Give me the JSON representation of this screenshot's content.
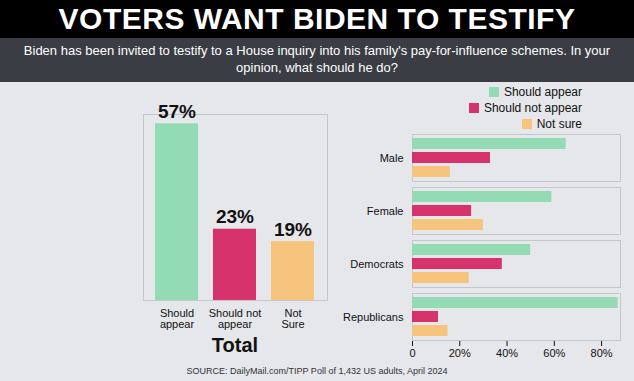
{
  "title": "VOTERS WANT BIDEN TO TESTIFY",
  "subtitle": "Biden has been invited to testify to a House inquiry into his family's pay-for-influence schemes. In your opinion, what should he do?",
  "source": "SOURCE: DailyMail.com/TIPP Poll of 1,432 US adults, April 2024",
  "chart_data": [
    {
      "type": "bar",
      "xlabel": "Total",
      "categories": [
        "Should appear",
        "Should not appear",
        "Not Sure"
      ],
      "values": [
        57,
        23,
        19
      ],
      "value_labels": [
        "57%",
        "23%",
        "19%"
      ],
      "colors": [
        "#93dcb3",
        "#d6336c",
        "#f7c47e"
      ],
      "ylim": [
        0,
        60
      ],
      "yticks": [],
      "data_labels": true,
      "tick_labels": "x"
    },
    {
      "type": "bar",
      "orientation": "horizontal",
      "categories": [
        "Male",
        "Female",
        "Democrats",
        "Republicans"
      ],
      "series": [
        {
          "name": "Should appear",
          "color": "#93dcb3",
          "values": [
            65,
            59,
            50,
            87
          ]
        },
        {
          "name": "Should not appear",
          "color": "#d6336c",
          "values": [
            33,
            25,
            38,
            11
          ]
        },
        {
          "name": "Not sure",
          "color": "#f7c47e",
          "values": [
            16,
            30,
            24,
            15
          ]
        }
      ],
      "xlim": [
        0,
        88
      ],
      "xticks": [
        0,
        {
          "value": 20,
          "label": "20%"
        },
        {
          "value": 40,
          "label": "40%"
        },
        {
          "value": 60,
          "label": "60%"
        },
        {
          "value": 80,
          "label": "80%"
        }
      ],
      "legend": "top-right",
      "grid": false
    }
  ]
}
